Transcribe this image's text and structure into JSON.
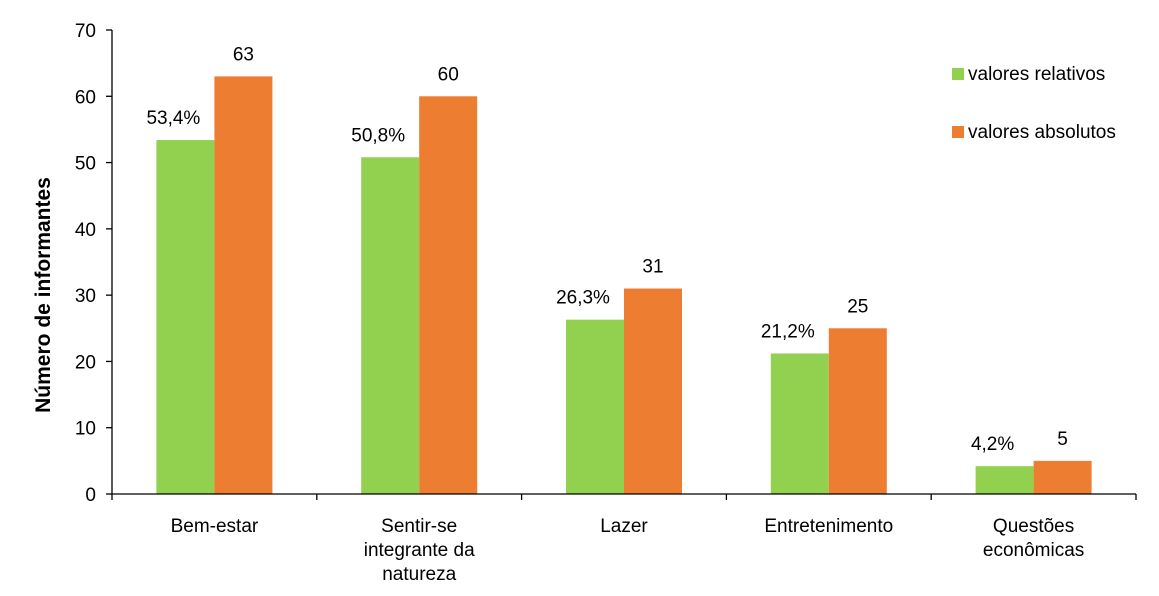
{
  "chart_data": {
    "type": "bar",
    "categories": [
      [
        "Bem-estar"
      ],
      [
        "Sentir-se",
        "integrante da",
        "natureza"
      ],
      [
        "Lazer"
      ],
      [
        "Entretenimento"
      ],
      [
        "Questões",
        "econômicas"
      ]
    ],
    "series": [
      {
        "name": "valores relativos",
        "color": "#92d050",
        "values": [
          53.4,
          50.8,
          26.3,
          21.2,
          4.2
        ],
        "labels": [
          "53,4%",
          "50,8%",
          "26,3%",
          "21,2%",
          "4,2%"
        ]
      },
      {
        "name": "valores absolutos",
        "color": "#ed7d31",
        "values": [
          63,
          60,
          31,
          25,
          5
        ],
        "labels": [
          "63",
          "60",
          "31",
          "25",
          "5"
        ]
      }
    ],
    "ylabel": "Número de informantes",
    "xlabel": "",
    "ylim": [
      0,
      70
    ],
    "yticks": [
      0,
      10,
      20,
      30,
      40,
      50,
      60,
      70
    ],
    "grid": false,
    "legend_position": "top-right"
  }
}
